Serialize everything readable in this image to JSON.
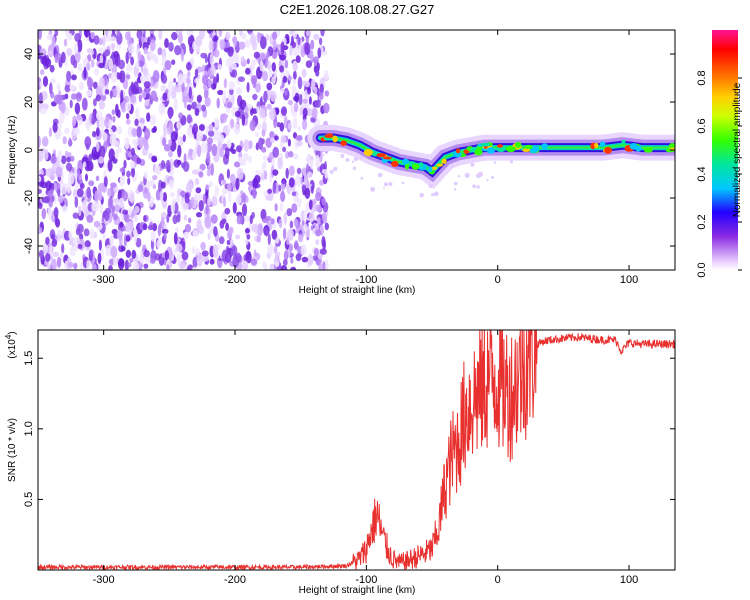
{
  "title": "C2E1.2026.108.08.27.G27",
  "chart_data": [
    {
      "type": "heatmap",
      "xlabel": "Height of straight line (km)",
      "ylabel": "Frequency (Hz)",
      "xlim": [
        -350,
        135
      ],
      "ylim": [
        -50,
        50
      ],
      "xticks": [
        -300,
        -200,
        -100,
        0,
        100
      ],
      "yticks": [
        -40,
        -20,
        0,
        20,
        40
      ],
      "noise_region_x": [
        -350,
        -133
      ],
      "ridge": {
        "x": [
          -135,
          -125,
          -115,
          -105,
          -95,
          -85,
          -75,
          -65,
          -55,
          -50,
          -45,
          -40,
          -30,
          -20,
          -10,
          0,
          20,
          50,
          80,
          95,
          110,
          135
        ],
        "y": [
          5,
          5,
          4,
          2,
          -1,
          -3,
          -5,
          -6,
          -7,
          -9,
          -6,
          -3,
          -1,
          0,
          1,
          1,
          1,
          1,
          1,
          2,
          1,
          1
        ]
      },
      "colorbar": {
        "label": "Normalized spectral amplitude",
        "range": [
          0,
          1
        ],
        "ticks": [
          "0.0",
          "0.2",
          "0.4",
          "0.6",
          "0.8"
        ]
      }
    },
    {
      "type": "line",
      "xlabel": "Height of straight line (km)",
      "ylabel": "SNR (10 * v/v)",
      "y_exponent_label": "(x10",
      "y_exponent": "4",
      "xlim": [
        -350,
        135
      ],
      "ylim": [
        0,
        1.7
      ],
      "xticks": [
        -300,
        -200,
        -100,
        0,
        100
      ],
      "yticks": [
        "0.5",
        "1.0",
        "1.5"
      ],
      "series": [
        {
          "color": "#e8302f",
          "x": [
            -350,
            -250,
            -150,
            -115,
            -105,
            -100,
            -97,
            -92,
            -88,
            -84,
            -80,
            -75,
            -70,
            -65,
            -60,
            -55,
            -50,
            -45,
            -40,
            -35,
            -30,
            -25,
            -20,
            -15,
            -10,
            -5,
            0,
            5,
            10,
            15,
            20,
            25,
            30,
            35,
            40,
            50,
            60,
            70,
            80,
            90,
            94,
            97,
            100,
            110,
            120,
            135
          ],
          "y": [
            0.02,
            0.02,
            0.02,
            0.03,
            0.08,
            0.15,
            0.25,
            0.4,
            0.25,
            0.15,
            0.08,
            0.05,
            0.06,
            0.08,
            0.1,
            0.12,
            0.15,
            0.3,
            0.6,
            0.8,
            0.9,
            1.1,
            1.2,
            1.25,
            1.3,
            1.4,
            1.35,
            1.3,
            1.25,
            1.35,
            1.45,
            1.55,
            1.6,
            1.62,
            1.63,
            1.64,
            1.65,
            1.64,
            1.63,
            1.63,
            1.55,
            1.58,
            1.61,
            1.6,
            1.6,
            1.6
          ]
        }
      ]
    }
  ]
}
